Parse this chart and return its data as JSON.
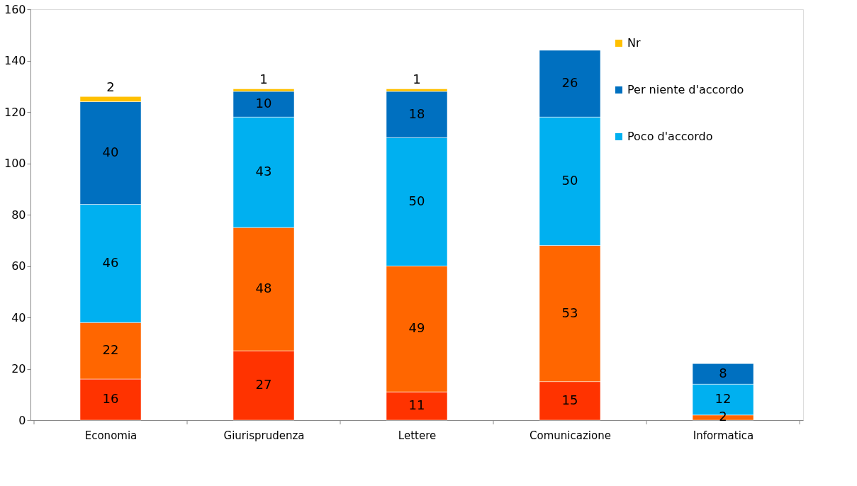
{
  "chart_data": {
    "type": "bar",
    "stacked": true,
    "categories": [
      "Economia",
      "Giurisprudenza",
      "Lettere",
      "Comunicazione",
      "Informatica"
    ],
    "series": [
      {
        "color": "#ff3300",
        "values": [
          16,
          27,
          11,
          15,
          null
        ]
      },
      {
        "color": "#ff6600",
        "values": [
          22,
          48,
          49,
          53,
          2
        ]
      },
      {
        "name": "Poco d'accordo",
        "color": "#00b0f0",
        "values": [
          46,
          43,
          50,
          50,
          12
        ]
      },
      {
        "name": "Per niente d'accordo",
        "color": "#0070c0",
        "values": [
          40,
          10,
          18,
          26,
          8
        ]
      },
      {
        "name": "Nr",
        "color": "#ffc000",
        "values": [
          2,
          1,
          1,
          null,
          null
        ]
      }
    ],
    "ylim": [
      0,
      160
    ],
    "yticks": [
      0,
      20,
      40,
      60,
      80,
      100,
      120,
      140,
      160
    ],
    "grid": false,
    "legend": "top right",
    "data_labels": true
  }
}
